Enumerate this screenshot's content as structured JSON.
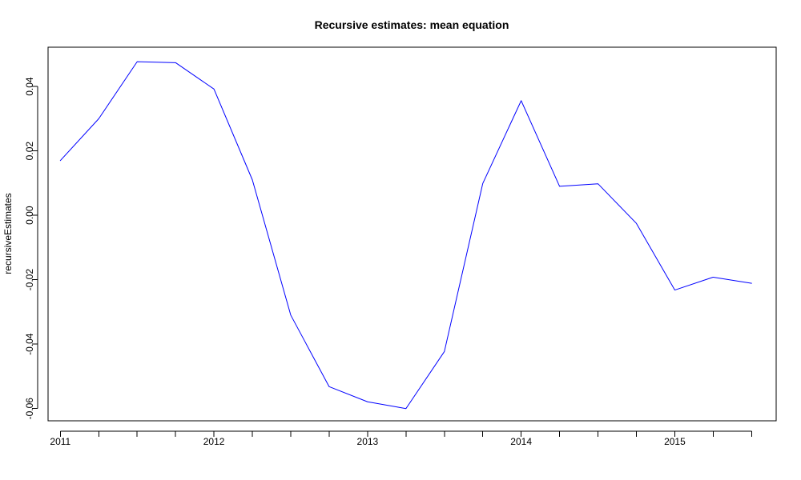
{
  "chart_data": {
    "type": "line",
    "title": "Recursive estimates: mean equation",
    "xlabel": "",
    "ylabel": "recursiveEstimates",
    "x": [
      2011.0,
      2011.25,
      2011.5,
      2011.75,
      2012.0,
      2012.25,
      2012.5,
      2012.75,
      2013.0,
      2013.25,
      2013.5,
      2013.75,
      2014.0,
      2014.25,
      2014.5,
      2014.75,
      2015.0,
      2015.25,
      2015.5
    ],
    "series": [
      {
        "values": [
          0.017,
          0.03,
          0.0477,
          0.0474,
          0.0392,
          0.011,
          -0.031,
          -0.0532,
          -0.0579,
          -0.06,
          -0.0423,
          0.0099,
          0.0356,
          0.009,
          0.0098,
          -0.0025,
          -0.0232,
          -0.0192,
          -0.0211
        ],
        "color": "#0000ff"
      }
    ],
    "x_ticks": [
      2011,
      2012,
      2013,
      2014,
      2015
    ],
    "x_tick_labels": [
      "2011",
      "2012",
      "2013",
      "2014",
      "2015"
    ],
    "y_ticks": [
      -0.06,
      -0.04,
      -0.02,
      0.0,
      0.02,
      0.04
    ],
    "y_tick_labels": [
      "-0.06",
      "-0.04",
      "-0.02",
      "0.00",
      "0.02",
      "0.04"
    ],
    "xlim": [
      2010.92,
      2015.66
    ],
    "ylim": [
      -0.0638,
      0.0522
    ],
    "grid": false,
    "legend": false
  }
}
